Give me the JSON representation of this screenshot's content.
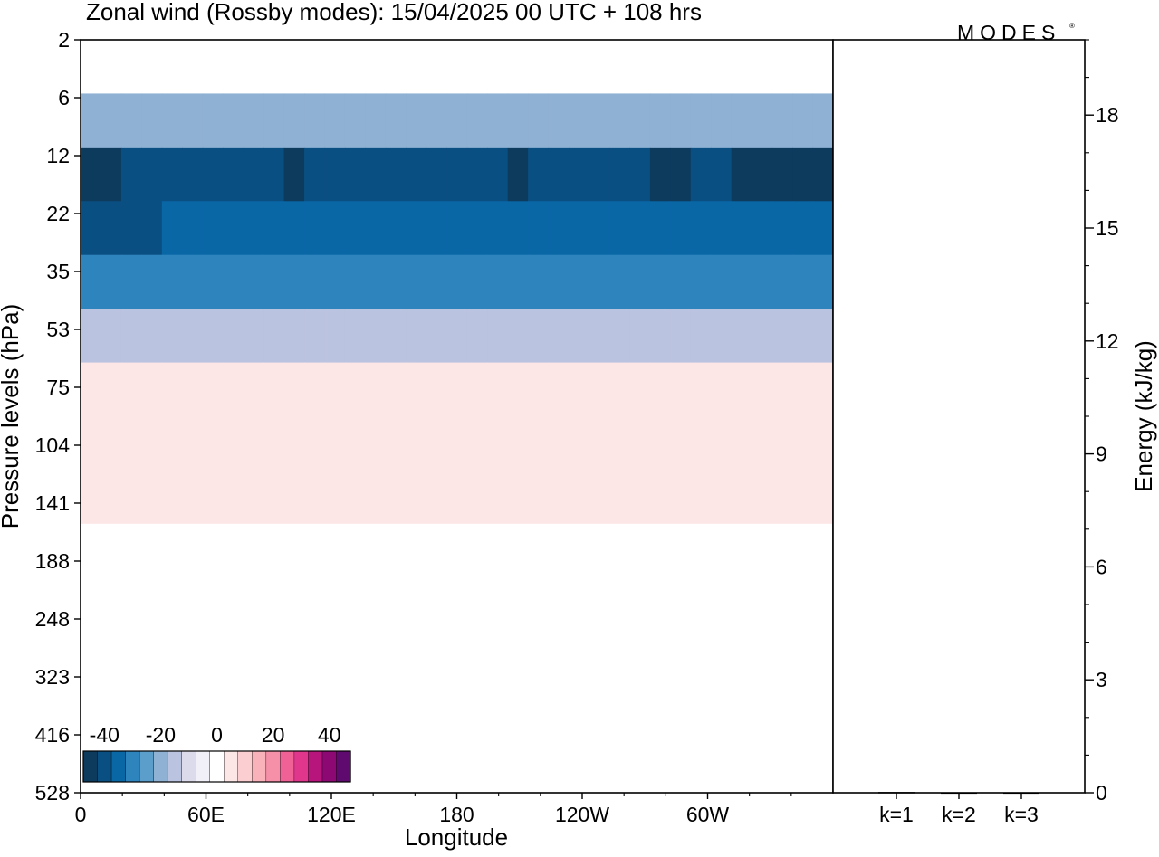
{
  "header": {
    "title": "Zonal wind (Rossby modes):  15/04/2025  00 UTC  + 108 hrs",
    "logo": "MODES"
  },
  "chart_data": [
    {
      "type": "heatmap",
      "title": "Zonal wind (Rossby modes):  15/04/2025  00 UTC  + 108 hrs",
      "xlabel": "Longitude",
      "ylabel": "Pressure levels (hPa)",
      "x_ticks": [
        "0",
        "60E",
        "120E",
        "180",
        "120W",
        "60W"
      ],
      "x_values": [
        0,
        60,
        120,
        180,
        240,
        300
      ],
      "xlim": [
        0,
        360
      ],
      "y_ticks": [
        "2",
        "6",
        "12",
        "22",
        "35",
        "53",
        "75",
        "104",
        "141",
        "188",
        "248",
        "323",
        "416",
        "528"
      ],
      "colorbar": {
        "ticks": [
          "-40",
          "-20",
          "0",
          "20",
          "40"
        ],
        "colors": [
          "#0d3b5e",
          "#0a4f82",
          "#0a67a6",
          "#2e84bd",
          "#5b9ecb",
          "#8fb1d3",
          "#bac3df",
          "#dcdbec",
          "#f1eff7",
          "#ffffff",
          "#fde7e6",
          "#fbcfd1",
          "#f9b2b9",
          "#f68fa8",
          "#f06296",
          "#e0378c",
          "#b8157c",
          "#8e0873",
          "#5e0a6e"
        ]
      },
      "z_levels": [
        -45,
        -40,
        -35,
        -30,
        -25,
        -20,
        -15,
        -10,
        -5,
        0,
        5,
        10,
        15,
        20,
        25,
        30,
        35,
        40,
        45
      ],
      "z_grid": [
        [
          2,
          2,
          2,
          2,
          2,
          2,
          2,
          2,
          2,
          2,
          2,
          2,
          2,
          2,
          2,
          2,
          2,
          2,
          2,
          2,
          2,
          2,
          2,
          2,
          2,
          2,
          2,
          2,
          2,
          2,
          2,
          2,
          2,
          2,
          2,
          2,
          2
        ],
        [
          -22,
          -22,
          -22,
          -22,
          -22,
          -22,
          -22,
          -22,
          -22,
          -22,
          -22,
          -22,
          -22,
          -22,
          -22,
          -22,
          -22,
          -22,
          -22,
          -22,
          -22,
          -22,
          -22,
          -22,
          -22,
          -22,
          -22,
          -22,
          -22,
          -22,
          -22,
          -22,
          -22,
          -22,
          -22,
          -22,
          -22
        ],
        [
          -43,
          -43,
          -42,
          -40,
          -38,
          -38,
          -38,
          -39,
          -40,
          -42,
          -43,
          -42,
          -41,
          -40,
          -40,
          -40,
          -41,
          -40,
          -40,
          -40,
          -42,
          -43,
          -42,
          -40,
          -39,
          -39,
          -40,
          -42,
          -43,
          -43,
          -42,
          -42,
          -43,
          -43,
          -43,
          -43,
          -43
        ],
        [
          -40,
          -40,
          -40,
          -38,
          -36,
          -35,
          -35,
          -35,
          -35,
          -36,
          -36,
          -36,
          -36,
          -36,
          -36,
          -36,
          -36,
          -36,
          -36,
          -36,
          -36,
          -36,
          -36,
          -36,
          -36,
          -36,
          -36,
          -36,
          -36,
          -36,
          -36,
          -36,
          -36,
          -36,
          -36,
          -36,
          -36
        ],
        [
          -31,
          -31,
          -30,
          -30,
          -29,
          -29,
          -29,
          -29,
          -29,
          -29,
          -29,
          -29,
          -29,
          -29,
          -29,
          -29,
          -29,
          -29,
          -29,
          -29,
          -29,
          -29,
          -29,
          -29,
          -29,
          -29,
          -29,
          -29,
          -29,
          -29,
          -29,
          -29,
          -29,
          -29,
          -29,
          -29,
          -29
        ],
        [
          -15,
          -15,
          -15,
          -15,
          -15,
          -15,
          -15,
          -15,
          -15,
          -15,
          -15,
          -15,
          -15,
          -15,
          -15,
          -15,
          -15,
          -15,
          -15,
          -15,
          -15,
          -15,
          -15,
          -15,
          -15,
          -15,
          -15,
          -15,
          -15,
          -15,
          -15,
          -15,
          -15,
          -15,
          -15,
          -15,
          -15
        ],
        [
          3,
          3,
          3,
          3,
          3,
          3,
          3,
          3,
          3,
          3,
          3,
          3,
          3,
          3,
          3,
          3,
          3,
          3,
          3,
          3,
          3,
          3,
          3,
          3,
          3,
          3,
          3,
          3,
          3,
          3,
          3,
          3,
          3,
          3,
          3,
          3,
          3
        ],
        [
          6,
          6,
          6,
          6,
          6,
          6,
          6,
          6,
          6,
          6,
          6,
          6,
          6,
          6,
          6,
          6,
          6,
          6,
          6,
          6,
          6,
          6,
          6,
          6,
          6,
          6,
          6,
          6,
          6,
          6,
          6,
          6,
          6,
          6,
          6,
          6,
          6
        ],
        [
          3,
          3,
          3,
          3,
          3,
          3,
          3,
          3,
          3,
          3,
          3,
          3,
          3,
          3,
          3,
          3,
          3,
          3,
          3,
          3,
          3,
          3,
          3,
          3,
          3,
          3,
          3,
          3,
          3,
          3,
          3,
          3,
          3,
          3,
          3,
          3,
          3
        ],
        [
          0,
          0,
          0,
          0,
          0,
          0,
          0,
          0,
          0,
          0,
          0,
          0,
          0,
          0,
          0,
          0,
          0,
          0,
          0,
          0,
          0,
          0,
          0,
          0,
          0,
          0,
          0,
          0,
          0,
          0,
          0,
          0,
          0,
          0,
          0,
          0,
          0
        ],
        [
          -2,
          -2,
          -2,
          -2,
          -2,
          -2,
          -2,
          -2,
          -2,
          -2,
          -2,
          -2,
          -2,
          -2,
          -2,
          -2,
          -2,
          -2,
          -2,
          -2,
          -2,
          -2,
          -2,
          -2,
          -2,
          -2,
          -2,
          -2,
          -2,
          -2,
          -2,
          -2,
          -2,
          -2,
          -2,
          -2,
          -2
        ],
        [
          -1,
          -1,
          -1,
          -1,
          -1,
          -1,
          -1,
          -1,
          -1,
          -1,
          -1,
          -1,
          -1,
          -1,
          -1,
          -1,
          -1,
          -1,
          -1,
          -1,
          -1,
          -1,
          -1,
          -1,
          -1,
          -1,
          -1,
          -1,
          -1,
          -1,
          -1,
          -1,
          -1,
          -1,
          -1,
          -1,
          -1
        ],
        [
          0,
          0,
          0,
          0,
          0,
          0,
          0,
          0,
          0,
          0,
          0,
          0,
          0,
          0,
          0,
          0,
          0,
          0,
          0,
          0,
          0,
          0,
          0,
          0,
          0,
          0,
          0,
          0,
          0,
          0,
          0,
          0,
          0,
          0,
          0,
          0,
          0
        ],
        [
          -1,
          -1,
          -1,
          -1,
          -1,
          -1,
          -1,
          -1,
          -1,
          -1,
          -1,
          -1,
          -1,
          -1,
          -1,
          -1,
          -1,
          -1,
          -1,
          -1,
          -1,
          -1,
          -1,
          -1,
          -1,
          -1,
          -1,
          -1,
          -1,
          -1,
          -1,
          -1,
          -1,
          -1,
          -1,
          -1,
          -1
        ]
      ]
    },
    {
      "type": "bar",
      "categories": [
        "k=1",
        "k=2",
        "k=3"
      ],
      "values": [
        0.02,
        0.01,
        0.01
      ],
      "ylabel": "Energy (kJ/kg)",
      "ylim": [
        0,
        20
      ],
      "y_ticks": [
        "0",
        "3",
        "6",
        "9",
        "12",
        "15",
        "18"
      ]
    }
  ]
}
